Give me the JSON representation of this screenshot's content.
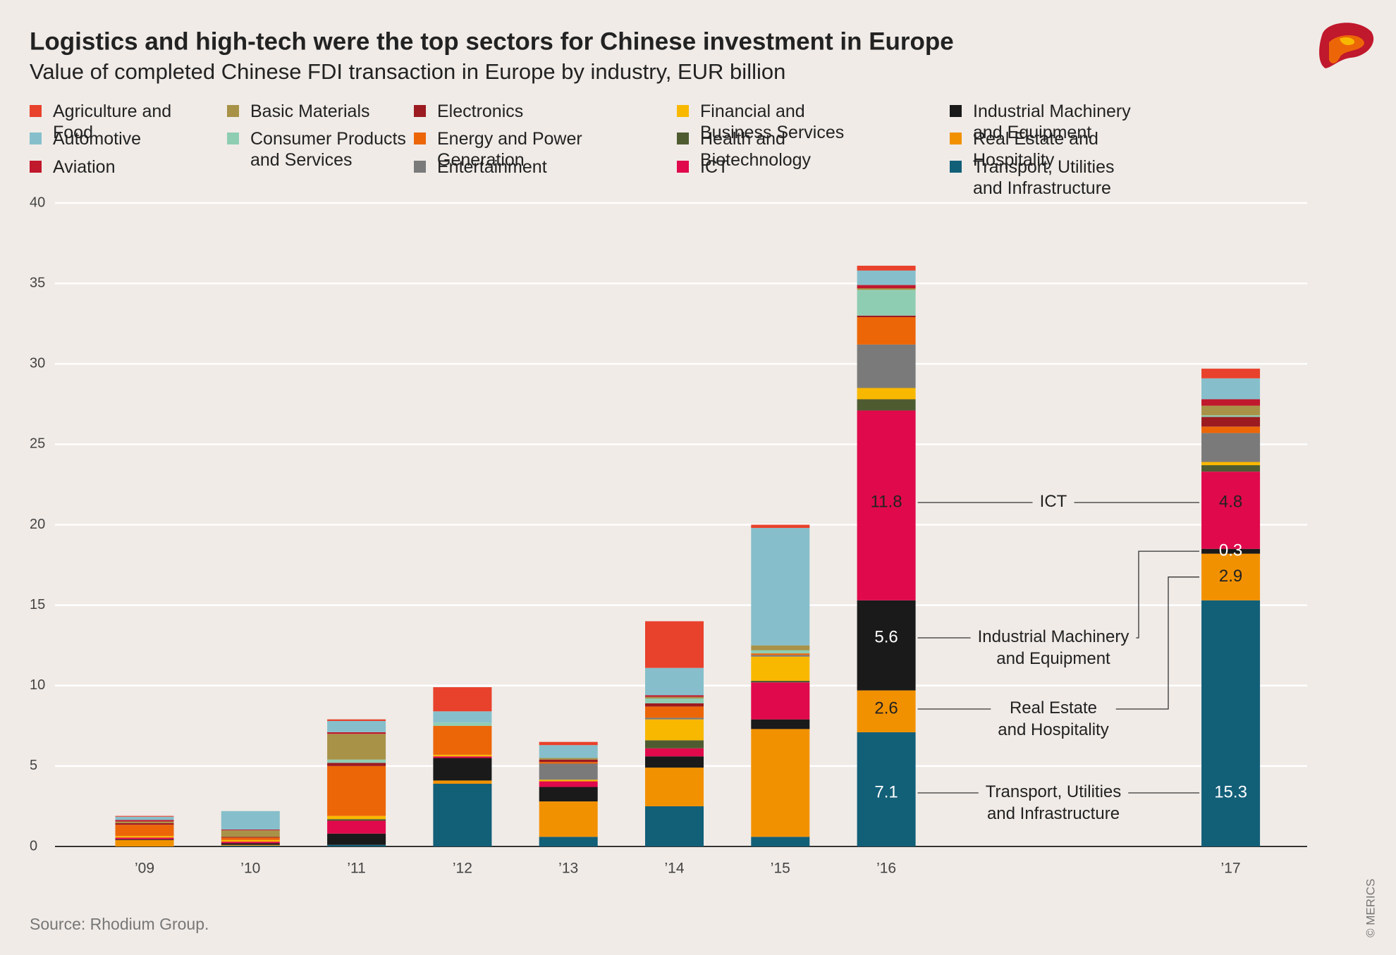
{
  "chart_data": {
    "type": "stacked_bar",
    "title": "Logistics and high-tech were the top sectors for Chinese investment in Europe",
    "subtitle": "Value of completed Chinese FDI transaction in Europe by industry, EUR billion",
    "categories": [
      "’09",
      "’10",
      "’11",
      "’12",
      "’13",
      "’14",
      "’15",
      "’16",
      "’17"
    ],
    "series": [
      {
        "name": "Agriculture and Food",
        "color": "#e8412c",
        "values": [
          0.05,
          0,
          0.1,
          1.5,
          0.2,
          2.9,
          0.2,
          0.3,
          0.6
        ]
      },
      {
        "name": "Automotive",
        "color": "#86bfcb",
        "values": [
          0.2,
          1.15,
          0.7,
          0.7,
          0.8,
          1.7,
          7.3,
          0.9,
          1.3
        ]
      },
      {
        "name": "Aviation",
        "color": "#c0182c",
        "values": [
          0.1,
          0.05,
          0.1,
          0,
          0,
          0.1,
          0,
          0.2,
          0.4
        ]
      },
      {
        "name": "Basic Materials",
        "color": "#a89248",
        "values": [
          0.1,
          0.4,
          1.6,
          0,
          0.1,
          0.1,
          0.3,
          0.1,
          0.6
        ]
      },
      {
        "name": "Consumer Products and Services",
        "color": "#8fcdb3",
        "values": [
          0,
          0,
          0.2,
          0.2,
          0,
          0.3,
          0.2,
          1.6,
          0.1
        ]
      },
      {
        "name": "Electronics",
        "color": "#9b1b20",
        "values": [
          0.1,
          0.05,
          0.2,
          0,
          0.15,
          0.2,
          0,
          0.1,
          0.6
        ]
      },
      {
        "name": "Energy and Power Generation",
        "color": "#ec6608",
        "values": [
          0.7,
          0.15,
          3.1,
          1.8,
          0.1,
          0.7,
          0.1,
          1.7,
          0.4
        ]
      },
      {
        "name": "Entertainment",
        "color": "#7a7a7a",
        "values": [
          0,
          0,
          0,
          0,
          1.0,
          0.1,
          0.1,
          2.7,
          1.8
        ]
      },
      {
        "name": "Financial and Business Services",
        "color": "#f9b800",
        "values": [
          0.1,
          0.1,
          0.2,
          0.1,
          0.1,
          1.3,
          1.5,
          0.7,
          0.2
        ]
      },
      {
        "name": "Health and Biotechnology",
        "color": "#4e5b31",
        "values": [
          0,
          0,
          0.1,
          0,
          0,
          0.5,
          0.1,
          0.7,
          0.4
        ]
      },
      {
        "name": "ICT",
        "color": "#e0094b",
        "values": [
          0.1,
          0.1,
          0.8,
          0.1,
          0.35,
          0.5,
          2.3,
          11.8,
          4.8
        ]
      },
      {
        "name": "Industrial Machinery and Equipment",
        "color": "#1a1a1a",
        "values": [
          0.05,
          0.1,
          0.7,
          1.4,
          0.9,
          0.7,
          0.6,
          5.6,
          0.3
        ]
      },
      {
        "name": "Real Estate and Hospitality",
        "color": "#f29100",
        "values": [
          0.4,
          0.05,
          0,
          0.2,
          2.2,
          2.4,
          6.7,
          2.6,
          2.9
        ]
      },
      {
        "name": "Transport, Utilities and Infrastructure",
        "color": "#125f78",
        "values": [
          0,
          0.05,
          0.1,
          3.9,
          0.6,
          2.5,
          0.6,
          7.1,
          15.3
        ]
      }
    ],
    "ylim": [
      0,
      40
    ],
    "yticks": [
      0,
      5,
      10,
      15,
      20,
      25,
      30,
      35,
      40
    ],
    "grid": true,
    "annotations": [
      [
        "ICT"
      ],
      [
        "Industrial Machinery",
        "and Equipment"
      ],
      [
        "Real Estate",
        "and Hospitality"
      ],
      [
        "Transport, Utilities",
        "and Infrastructure"
      ]
    ],
    "source": "Source: Rhodium Group.",
    "credit": "© MERICS"
  }
}
